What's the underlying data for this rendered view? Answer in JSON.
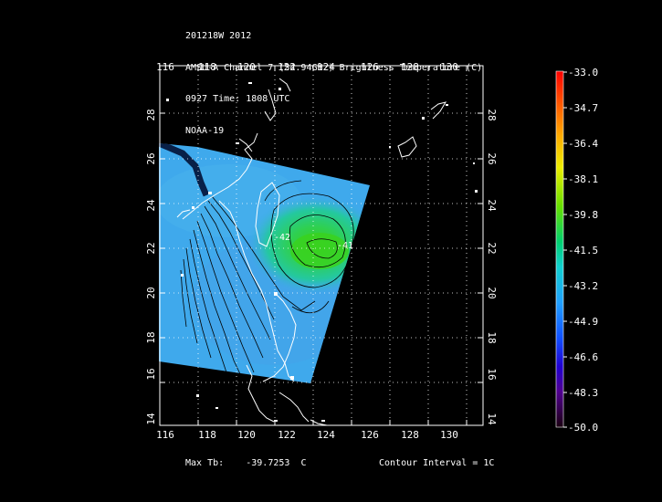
{
  "header": {
    "storm_line": "201218W 2012",
    "channel_line": "AMSU-A Channel 7 (54.94GHz) Brightness Temperature (C)",
    "time_line": "0927 Time: 1808 UTC",
    "satellite_line": "NOAA-19"
  },
  "map": {
    "lon_ticks": [
      "116",
      "118",
      "120",
      "122",
      "124",
      "126",
      "128",
      "130"
    ],
    "lat_ticks": [
      "14",
      "16",
      "18",
      "20",
      "22",
      "24",
      "26",
      "28"
    ],
    "contour_labels": [
      "-42",
      "-41"
    ]
  },
  "colorbar": {
    "labels": [
      "-33.0",
      "-34.7",
      "-36.4",
      "-38.1",
      "-39.8",
      "-41.5",
      "-43.2",
      "-44.9",
      "-46.6",
      "-48.3",
      "-50.0"
    ],
    "max_color": "#ff0000",
    "min_color": "#1a0010"
  },
  "footer": {
    "max_tb_label": "Max Tb:",
    "max_tb_value": "-39.7253",
    "max_tb_unit": "C",
    "contour_interval": "Contour Interval = 1C"
  },
  "colors": {
    "background": "#000000",
    "coastline": "#ffffff",
    "swath_blue": "#3fa9ec",
    "warm_core_green": "#2ed04a"
  }
}
